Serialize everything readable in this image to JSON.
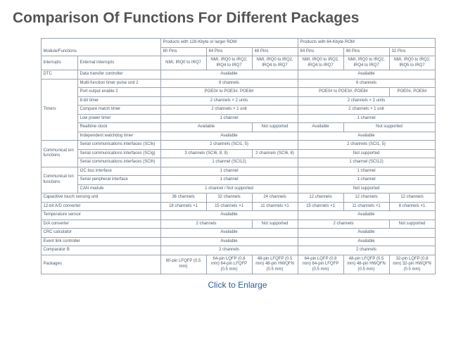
{
  "title": "Comparison Of Functions For Different Packages",
  "clickText": "Click to Enlarge",
  "header": {
    "modFunc": "Module/Functions",
    "group128": "Products with 128-Kbyte or larger ROM",
    "group64": "Products with 64-Kbyte ROM",
    "p80": "80 Pins",
    "p64a": "64 Pins",
    "p48a": "48 Pins",
    "p64b": "64 Pins",
    "p48b": "48 Pins",
    "p32": "32 Pins"
  },
  "r_irq": {
    "mod": "Interrupts",
    "func": "External interrupts",
    "c1": "NMI,\nIRQ0 to IRQ7",
    "c2": "NMI,\nIRQ0 to IRQ2,\nIRQ4 to IRQ7",
    "c3": "NMI,\nIRQ0 to IRQ2,\nIRQ4 to IRQ7",
    "c4": "NMI,\nIRQ0 to IRQ2,\nIRQ4 to IRQ7",
    "c5": "NMI,\nIRQ0 to IRQ2,\nIRQ4 to IRQ7",
    "c6": "NMI,\nIRQ0 to IRQ2,\nIRQ5 to IRQ7"
  },
  "r_dtc": {
    "mod": "DTC",
    "func": "Data transfer controller",
    "a": "Available",
    "b": "Available"
  },
  "r_mtu": {
    "mod": "Timers",
    "func": "Multi-function timer pulse unit 2",
    "a": "6 channels",
    "b": "6 channels"
  },
  "r_poe": {
    "func": "Port output enable 2",
    "a": "POE0# to POE3#, POE8#",
    "b": "POE0# to POE3#, POE8#",
    "c": "POE0#,\nPOE8#"
  },
  "r_8bit": {
    "func": "8-bit timer",
    "a": "2 channels × 2 units",
    "b": "2 channels × 2 units"
  },
  "r_cmt": {
    "func": "Compare match timer",
    "a": "2 channels × 1 unit",
    "b": "2 channels × 1 unit"
  },
  "r_lpt": {
    "func": "Low power timer",
    "a": "1 channel",
    "b": "1 channel"
  },
  "r_rtc": {
    "func": "Realtime clock",
    "a": "Available",
    "ns": "Not supported",
    "b": "Available",
    "ns2": "Not supported"
  },
  "r_iwdt": {
    "func": "Independent watchdog timer",
    "a": "Available",
    "b": "Available"
  },
  "r_scik": {
    "mod": "Communicat\nion functions",
    "func": "Serial communications interfaces (SCIk)",
    "a": "2 channels\n(SCI1, 5)",
    "b": "2 channels\n(SCI1, 5)"
  },
  "r_scig": {
    "func": "Serial communications interfaces (SCIg)",
    "a": "3 channels\n(SCI6, 8, 9)",
    "b": "2 channels\n(SCI6, 8)",
    "ns": "Not supported"
  },
  "r_scih": {
    "func": "Serial communications interfaces (SCIh)",
    "a": "1 channel\n(SCI12)",
    "b": "1 channel\n(SCI12)"
  },
  "r_i2c": {
    "mod": "Communicat\nion functions",
    "func": "I2C bus interface",
    "a": "1 channel",
    "b": "1 channel"
  },
  "r_spi": {
    "func": "Serial peripheral interface",
    "a": "1 channel",
    "b": "1 channel"
  },
  "r_can": {
    "func": "CAN module",
    "a": "1 channel / Not supported",
    "b": "Not supported"
  },
  "r_ctsu": {
    "func": "Capacitive touch sensing unit",
    "c1": "36 channels",
    "c2": "32 channels",
    "c3": "24 channels",
    "c4": "12 channels",
    "c5": "12 channels",
    "c6": "12 channels"
  },
  "r_adc": {
    "func": "12-bit A/D converter",
    "c1": "18 channels\n×1",
    "c2": "15 channels\n×1",
    "c3": "11 channels\n×1",
    "c4": "15 channels\n×1",
    "c5": "11 channels\n×1",
    "c6": "8 channels\n×1"
  },
  "r_temp": {
    "func": "Temperature sensor",
    "a": "Available",
    "b": "Available"
  },
  "r_dac": {
    "func": "D/A converter",
    "a": "2 channels",
    "ns": "Not supported",
    "b": "2 channels",
    "ns2": "Not supported"
  },
  "r_crc": {
    "func": "CRC calculator",
    "a": "Available",
    "b": "Available"
  },
  "r_elc": {
    "func": "Event link controller",
    "a": "Available",
    "b": "Available"
  },
  "r_cmp": {
    "func": "Comparator B",
    "a": "2 channels",
    "b": "2 channels"
  },
  "r_pkg": {
    "func": "Packages",
    "c1": "80-pin LFQFP\n(0.5 mm)",
    "c2": "64-pin LQFP\n(0.8 mm)\n64-pin LFQFP\n(0.5 mm)",
    "c3": "48-pin LFQFP\n(0.5 mm)\n48-pin\nHWQFN\n(0.5 mm)",
    "c4": "64-pin LQFP\n(0.8 mm)\n64-pin LFQFP\n(0.5 mm)",
    "c5": "48-pin LFQFP\n(0.5 mm)\n48-pin\nHWQFN\n(0.5 mm)",
    "c6": "32-pin LQFP\n(0.8 mm)\n32-pin\nHWQFN\n(0.5 mm)"
  }
}
